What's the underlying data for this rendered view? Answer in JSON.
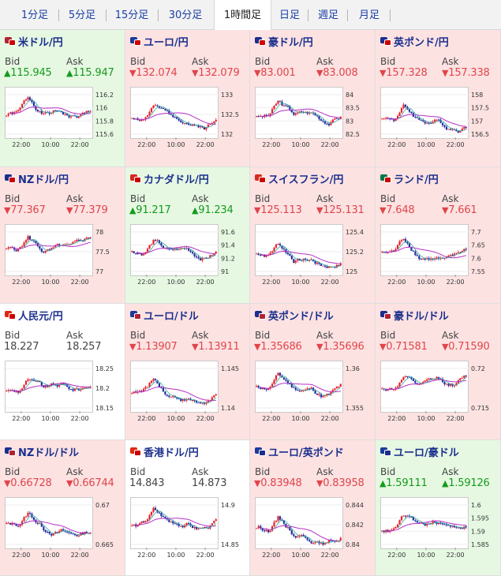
{
  "tabs": {
    "items": [
      {
        "label": "1分足"
      },
      {
        "label": "5分足"
      },
      {
        "label": "15分足"
      },
      {
        "label": "30分足"
      },
      {
        "label": "1時間足"
      },
      {
        "label": "日足"
      },
      {
        "label": "週足"
      },
      {
        "label": "月足"
      }
    ],
    "active_index": 4
  },
  "labels": {
    "bid": "Bid",
    "ask": "Ask"
  },
  "arrows": {
    "up": "▲",
    "down": "▼"
  },
  "colors": {
    "up_bg": "#e6f8e2",
    "down_bg": "#fde2e2",
    "flat_bg": "#ffffff",
    "up_text": "#159a1c",
    "down_text": "#e0454a",
    "candle_up": "#e8202a",
    "candle_down": "#1f2f9e",
    "ma_short": "#3aa7a0",
    "ma_long": "#b72fc6"
  },
  "pairs": [
    {
      "name": "米ドル/円",
      "flag_icon": "jp-us-flag-icon",
      "flags": [
        "#b22234",
        "#cc0000"
      ],
      "trend": "up",
      "bid": "115.945",
      "ask": "115.947",
      "chart": {
        "y_ticks": [
          "116.2",
          "116",
          "115.8",
          "115.6"
        ],
        "x_ticks": [
          "22:00",
          "10:00",
          "22:00"
        ]
      }
    },
    {
      "name": "ユーロ/円",
      "flag_icon": "eu-jp-flag-icon",
      "flags": [
        "#1a3a9a",
        "#cc0000"
      ],
      "trend": "down",
      "bid": "132.074",
      "ask": "132.079",
      "chart": {
        "y_ticks": [
          "133",
          "132.5",
          "132"
        ],
        "x_ticks": [
          "22:00",
          "10:00",
          "22:00"
        ]
      }
    },
    {
      "name": "豪ドル/円",
      "flag_icon": "au-jp-flag-icon",
      "flags": [
        "#1a2f8c",
        "#cc0000"
      ],
      "trend": "down",
      "bid": "83.001",
      "ask": "83.008",
      "chart": {
        "y_ticks": [
          "84",
          "83.5",
          "83",
          "82.5"
        ],
        "x_ticks": [
          "22:00",
          "10:00",
          "22:00"
        ]
      }
    },
    {
      "name": "英ポンド/円",
      "flag_icon": "gb-jp-flag-icon",
      "flags": [
        "#1a2f8c",
        "#cc0000"
      ],
      "trend": "down",
      "bid": "157.328",
      "ask": "157.338",
      "chart": {
        "y_ticks": [
          "158",
          "157.5",
          "157",
          "156.5"
        ],
        "x_ticks": [
          "22:00",
          "10:00",
          "22:00"
        ]
      }
    },
    {
      "name": "NZドル/円",
      "flag_icon": "nz-jp-flag-icon",
      "flags": [
        "#1a2f8c",
        "#cc0000"
      ],
      "trend": "down",
      "bid": "77.367",
      "ask": "77.379",
      "chart": {
        "y_ticks": [
          "78",
          "77.5",
          "77"
        ],
        "x_ticks": [
          "22:00",
          "10:00",
          "22:00"
        ]
      }
    },
    {
      "name": "カナダドル/円",
      "flag_icon": "ca-jp-flag-icon",
      "flags": [
        "#d52b1e",
        "#cc0000"
      ],
      "trend": "up",
      "bid": "91.217",
      "ask": "91.234",
      "chart": {
        "y_ticks": [
          "91.6",
          "91.4",
          "91.2",
          "91"
        ],
        "x_ticks": [
          "22:00",
          "10:00",
          "22:00"
        ]
      }
    },
    {
      "name": "スイスフラン/円",
      "flag_icon": "ch-jp-flag-icon",
      "flags": [
        "#d52b1e",
        "#cc0000"
      ],
      "trend": "down",
      "bid": "125.113",
      "ask": "125.131",
      "chart": {
        "y_ticks": [
          "125.4",
          "125.2",
          "125"
        ],
        "x_ticks": [
          "22:00",
          "10:00",
          "22:00"
        ]
      }
    },
    {
      "name": "ランド/円",
      "flag_icon": "za-jp-flag-icon",
      "flags": [
        "#007a4d",
        "#cc0000"
      ],
      "trend": "down",
      "bid": "7.648",
      "ask": "7.661",
      "chart": {
        "y_ticks": [
          "7.7",
          "7.65",
          "7.6",
          "7.55"
        ],
        "x_ticks": [
          "22:00",
          "10:00",
          "22:00"
        ]
      }
    },
    {
      "name": "人民元/円",
      "flag_icon": "cn-jp-flag-icon",
      "flags": [
        "#de2910",
        "#cc0000"
      ],
      "trend": "flat",
      "bid": "18.227",
      "ask": "18.257",
      "chart": {
        "y_ticks": [
          "18.25",
          "18.2",
          "18.15"
        ],
        "x_ticks": [
          "22:00",
          "10:00",
          "22:00"
        ]
      }
    },
    {
      "name": "ユーロ/ドル",
      "flag_icon": "eu-us-flag-icon",
      "flags": [
        "#1a3a9a",
        "#b22234"
      ],
      "trend": "down",
      "bid": "1.13907",
      "ask": "1.13911",
      "chart": {
        "y_ticks": [
          "1.145",
          "1.14"
        ],
        "x_ticks": [
          "22:00",
          "10:00",
          "22:00"
        ]
      }
    },
    {
      "name": "英ポンド/ドル",
      "flag_icon": "gb-us-flag-icon",
      "flags": [
        "#1a2f8c",
        "#b22234"
      ],
      "trend": "down",
      "bid": "1.35686",
      "ask": "1.35696",
      "chart": {
        "y_ticks": [
          "1.36",
          "1.355"
        ],
        "x_ticks": [
          "22:00",
          "10:00",
          "22:00"
        ]
      }
    },
    {
      "name": "豪ドル/ドル",
      "flag_icon": "au-us-flag-icon",
      "flags": [
        "#1a2f8c",
        "#b22234"
      ],
      "trend": "down",
      "bid": "0.71581",
      "ask": "0.71590",
      "chart": {
        "y_ticks": [
          "0.72",
          "0.715"
        ],
        "x_ticks": [
          "22:00",
          "10:00",
          "22:00"
        ]
      }
    },
    {
      "name": "NZドル/ドル",
      "flag_icon": "nz-us-flag-icon",
      "flags": [
        "#1a2f8c",
        "#b22234"
      ],
      "trend": "down",
      "bid": "0.66728",
      "ask": "0.66744",
      "chart": {
        "y_ticks": [
          "0.67",
          "0.665"
        ],
        "x_ticks": [
          "22:00",
          "10:00",
          "22:00"
        ]
      }
    },
    {
      "name": "香港ドル/円",
      "flag_icon": "hk-jp-flag-icon",
      "flags": [
        "#de2910",
        "#cc0000"
      ],
      "trend": "flat",
      "bid": "14.843",
      "ask": "14.873",
      "chart": {
        "y_ticks": [
          "14.9",
          "14.85"
        ],
        "x_ticks": [
          "22:00",
          "10:00",
          "22:00"
        ]
      }
    },
    {
      "name": "ユーロ/英ポンド",
      "flag_icon": "eu-gb-flag-icon",
      "flags": [
        "#1a3a9a",
        "#1a2f8c"
      ],
      "trend": "down",
      "bid": "0.83948",
      "ask": "0.83958",
      "chart": {
        "y_ticks": [
          "0.844",
          "0.842",
          "0.84"
        ],
        "x_ticks": [
          "22:00",
          "10:00",
          "22:00"
        ]
      }
    },
    {
      "name": "ユーロ/豪ドル",
      "flag_icon": "eu-au-flag-icon",
      "flags": [
        "#1a3a9a",
        "#1a2f8c"
      ],
      "trend": "up",
      "bid": "1.59111",
      "ask": "1.59126",
      "chart": {
        "y_ticks": [
          "1.6",
          "1.595",
          "1.59",
          "1.585"
        ],
        "x_ticks": [
          "22:00",
          "10:00",
          "22:00"
        ]
      }
    }
  ]
}
